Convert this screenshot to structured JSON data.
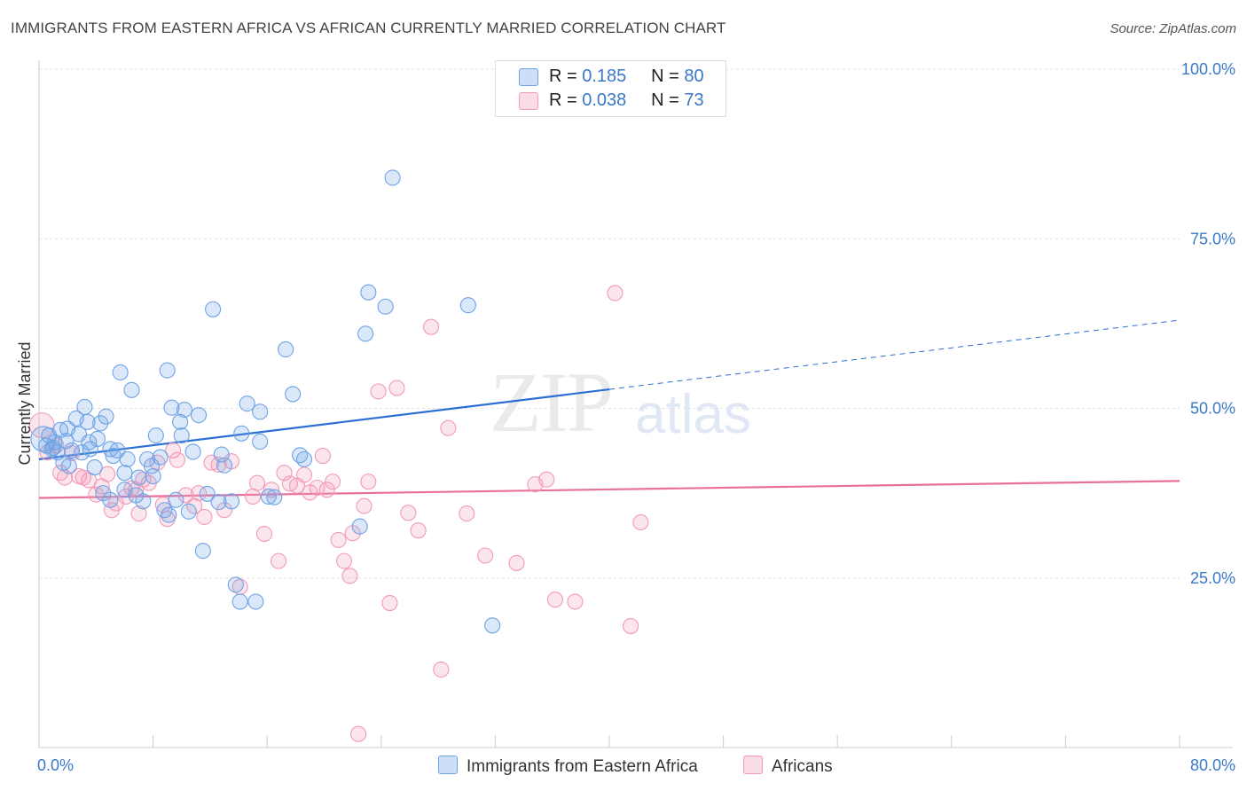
{
  "title": "IMMIGRANTS FROM EASTERN AFRICA VS AFRICAN CURRENTLY MARRIED CORRELATION CHART",
  "source": "Source: ZipAtlas.com",
  "watermark": {
    "zip": "ZIP",
    "atlas": "atlas"
  },
  "colors": {
    "blue": "#6fa3e6",
    "pink": "#f29ab6",
    "blue_line": "#2a6fd4",
    "pink_line": "#e8709a",
    "axis_text": "#3a78c9"
  },
  "legend": {
    "r_label": "R =",
    "n_label": "N =",
    "blue": {
      "r": "0.185",
      "n": "80"
    },
    "pink": {
      "r": "0.038",
      "n": "73"
    }
  },
  "bottom_legend": {
    "blue": "Immigrants from Eastern Africa",
    "pink": "Africans"
  },
  "chart_data": {
    "type": "scatter",
    "xlabel": "",
    "ylabel": "Currently Married",
    "xlim": [
      0,
      80
    ],
    "ylim": [
      0,
      100
    ],
    "x_tick_labels": [
      "0.0%",
      "80.0%"
    ],
    "y_tick_labels": [
      {
        "value": 25,
        "label": "25.0%"
      },
      {
        "value": 50,
        "label": "50.0%"
      },
      {
        "value": 75,
        "label": "75.0%"
      },
      {
        "value": 100,
        "label": "100.0%"
      }
    ],
    "grid": true,
    "series": [
      {
        "name": "Immigrants from Eastern Africa",
        "color": "#6fa3e6",
        "trend": {
          "x0": 0,
          "y0": 42.5,
          "x1": 40,
          "y1": 52.8,
          "dashed_to_x": 80,
          "dashed_to_y": 63.0
        },
        "points": [
          [
            0.3,
            45.5
          ],
          [
            0.5,
            44.5
          ],
          [
            0.7,
            46
          ],
          [
            0.9,
            44
          ],
          [
            1.1,
            45
          ],
          [
            1.3,
            43.5
          ],
          [
            1.5,
            46.8
          ],
          [
            1.7,
            42
          ],
          [
            1.9,
            45.2
          ],
          [
            2.1,
            41.5
          ],
          [
            2.3,
            43.8
          ],
          [
            2.6,
            48.5
          ],
          [
            2.8,
            46.2
          ],
          [
            3.0,
            43.5
          ],
          [
            3.2,
            50.2
          ],
          [
            3.4,
            48
          ],
          [
            3.6,
            44
          ],
          [
            3.9,
            41.3
          ],
          [
            4.1,
            45.5
          ],
          [
            4.3,
            47.8
          ],
          [
            4.5,
            37.5
          ],
          [
            4.7,
            48.8
          ],
          [
            5.0,
            36.5
          ],
          [
            5.2,
            43
          ],
          [
            5.5,
            43.8
          ],
          [
            5.7,
            55.3
          ],
          [
            6.0,
            40.5
          ],
          [
            6.2,
            42.5
          ],
          [
            6.5,
            52.7
          ],
          [
            6.8,
            37.2
          ],
          [
            7.0,
            39.8
          ],
          [
            7.3,
            36.3
          ],
          [
            7.6,
            42.5
          ],
          [
            7.9,
            41.5
          ],
          [
            8.2,
            46
          ],
          [
            8.5,
            42.8
          ],
          [
            8.8,
            35
          ],
          [
            9.0,
            55.6
          ],
          [
            9.3,
            50.1
          ],
          [
            9.6,
            36.5
          ],
          [
            9.9,
            48
          ],
          [
            10.2,
            49.8
          ],
          [
            10.5,
            34.8
          ],
          [
            10.8,
            43.6
          ],
          [
            11.2,
            49
          ],
          [
            11.5,
            29
          ],
          [
            11.8,
            37.4
          ],
          [
            12.2,
            64.6
          ],
          [
            12.6,
            36.2
          ],
          [
            13,
            41.6
          ],
          [
            12.8,
            43.2
          ],
          [
            9.1,
            34.3
          ],
          [
            14.2,
            46.3
          ],
          [
            13.5,
            36.3
          ],
          [
            13.8,
            24
          ],
          [
            14.1,
            21.5
          ],
          [
            14.6,
            50.7
          ],
          [
            15.2,
            21.5
          ],
          [
            15.5,
            45.1
          ],
          [
            15.5,
            49.5
          ],
          [
            16.1,
            37
          ],
          [
            16.5,
            36.9
          ],
          [
            17.3,
            58.7
          ],
          [
            17.8,
            52.1
          ],
          [
            18.3,
            43.1
          ],
          [
            18.6,
            42.5
          ],
          [
            22.5,
            32.6
          ],
          [
            22.9,
            61
          ],
          [
            23.1,
            67.1
          ],
          [
            24.3,
            65
          ],
          [
            24.8,
            84
          ],
          [
            30.1,
            65.2
          ],
          [
            31.8,
            18
          ],
          [
            10.0,
            46
          ],
          [
            8.0,
            40
          ],
          [
            6.0,
            38
          ],
          [
            5.0,
            44
          ],
          [
            2.0,
            47
          ],
          [
            3.5,
            45
          ],
          [
            1.0,
            44.2
          ]
        ]
      },
      {
        "name": "Africans",
        "color": "#f29ab6",
        "trend": {
          "x0": 0,
          "y0": 36.8,
          "x1": 80,
          "y1": 39.3
        },
        "points": [
          [
            0.2,
            47.5
          ],
          [
            0.6,
            43.5
          ],
          [
            1.2,
            44.5
          ],
          [
            1.5,
            40.5
          ],
          [
            1.8,
            39.8
          ],
          [
            2.3,
            43.4
          ],
          [
            2.8,
            40
          ],
          [
            3.1,
            39.8
          ],
          [
            3.5,
            39.4
          ],
          [
            4.0,
            37.3
          ],
          [
            4.4,
            38.5
          ],
          [
            4.8,
            40.3
          ],
          [
            5.1,
            35
          ],
          [
            5.4,
            36
          ],
          [
            6.1,
            37
          ],
          [
            6.5,
            38.2
          ],
          [
            6.8,
            38
          ],
          [
            7.0,
            34.5
          ],
          [
            7.3,
            39.5
          ],
          [
            7.7,
            39
          ],
          [
            8.3,
            42
          ],
          [
            8.7,
            35.8
          ],
          [
            9.0,
            33.7
          ],
          [
            9.4,
            43.8
          ],
          [
            9.7,
            42.4
          ],
          [
            10.3,
            37.2
          ],
          [
            10.9,
            35.6
          ],
          [
            11.2,
            37.5
          ],
          [
            11.6,
            34
          ],
          [
            12.1,
            42
          ],
          [
            12.6,
            41.7
          ],
          [
            13.0,
            35
          ],
          [
            13.5,
            42.2
          ],
          [
            14.1,
            23.7
          ],
          [
            15.0,
            37
          ],
          [
            15.3,
            39
          ],
          [
            15.8,
            31.5
          ],
          [
            16.3,
            38
          ],
          [
            16.8,
            27.5
          ],
          [
            17.2,
            40.5
          ],
          [
            17.6,
            38.9
          ],
          [
            18.1,
            38.6
          ],
          [
            18.6,
            40.2
          ],
          [
            19.0,
            37.6
          ],
          [
            19.5,
            38.3
          ],
          [
            19.9,
            43
          ],
          [
            20.2,
            38
          ],
          [
            20.6,
            39.2
          ],
          [
            21.0,
            30.6
          ],
          [
            21.4,
            27.5
          ],
          [
            21.8,
            25.3
          ],
          [
            22.0,
            31.6
          ],
          [
            22.4,
            2
          ],
          [
            22.8,
            35.6
          ],
          [
            23.1,
            39.2
          ],
          [
            23.8,
            52.5
          ],
          [
            24.6,
            21.3
          ],
          [
            25.1,
            53
          ],
          [
            25.9,
            34.6
          ],
          [
            26.6,
            32
          ],
          [
            27.5,
            62
          ],
          [
            28.2,
            11.5
          ],
          [
            28.7,
            47.1
          ],
          [
            30.0,
            34.5
          ],
          [
            31.3,
            28.3
          ],
          [
            33.5,
            27.2
          ],
          [
            34.8,
            38.8
          ],
          [
            35.6,
            39.5
          ],
          [
            36.2,
            21.8
          ],
          [
            37.6,
            21.5
          ],
          [
            40.4,
            67
          ],
          [
            41.5,
            17.9
          ],
          [
            42.2,
            33.2
          ]
        ]
      }
    ]
  }
}
